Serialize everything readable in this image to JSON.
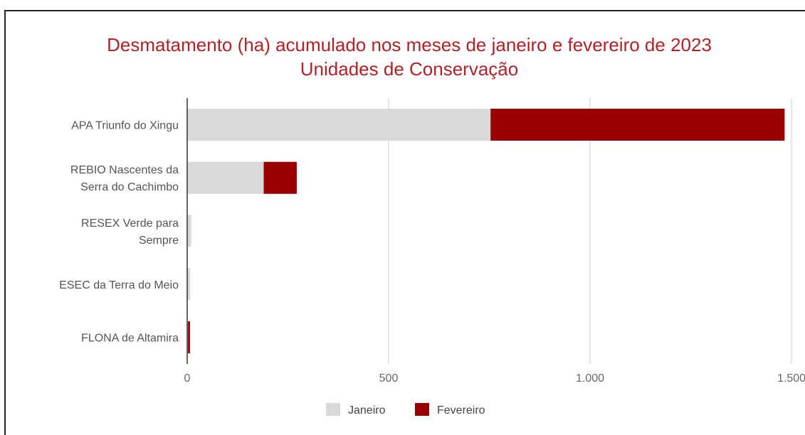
{
  "chart_data": {
    "type": "bar",
    "orientation": "horizontal",
    "stacked": true,
    "title": "Desmatamento (ha) acumulado nos meses de janeiro e fevereiro de 2023",
    "subtitle": "Unidades de Conservação",
    "categories": [
      [
        "APA Triunfo do Xingu"
      ],
      [
        "REBIO Nascentes da",
        "Serra do Cachimbo"
      ],
      [
        "RESEX Verde para",
        "Sempre"
      ],
      [
        "ESEC da Terra do Meio"
      ],
      [
        "FLONA de Altamira"
      ]
    ],
    "series": [
      {
        "name": "Janeiro",
        "color": "#d9d9d9",
        "values": [
          753,
          190,
          10,
          7,
          2
        ]
      },
      {
        "name": "Fevereiro",
        "color": "#990000",
        "values": [
          730,
          82,
          0,
          0,
          5
        ]
      }
    ],
    "xlim": [
      0,
      1500
    ],
    "ticks": [
      0,
      500,
      1000,
      1500
    ],
    "tick_labels": [
      "0",
      "500",
      "1.000",
      "1.500"
    ],
    "grid": true,
    "legend": "bottom",
    "xlabel": "",
    "ylabel": ""
  }
}
